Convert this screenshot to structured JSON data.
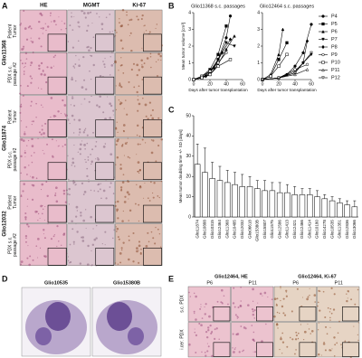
{
  "panel_a": {
    "letter": "A",
    "columns": [
      "HE",
      "MGMT",
      "Ki-67"
    ],
    "groups": [
      {
        "name": "Glio11368",
        "rows": [
          [
            "Patient",
            "Tumor"
          ],
          [
            "PDX s.c.",
            "passage #2"
          ]
        ]
      },
      {
        "name": "Glio11874",
        "rows": [
          [
            "Patient",
            "Tumor"
          ],
          [
            "PDX s.c.",
            "passage #2"
          ]
        ]
      },
      {
        "name": "Glio12032",
        "rows": [
          [
            "Patient",
            "Tumor"
          ],
          [
            "PDX s.c.",
            "passage #2"
          ]
        ]
      }
    ]
  },
  "chart_data": [
    {
      "type": "line",
      "letter": "B",
      "title": "Glio11368 s.c. passages",
      "y_label": "Mean tumor volume [cm³]",
      "x_label": "Days after tumor transplantation",
      "xlim": [
        0,
        60
      ],
      "xticks": [
        0,
        20,
        40,
        60
      ],
      "ylim": [
        0,
        4
      ],
      "yticks": [
        0,
        1,
        2,
        3,
        4
      ],
      "series": [
        {
          "color": "#000",
          "marker": "circle",
          "filled": true,
          "x": [
            0,
            10,
            20,
            30,
            40,
            45
          ],
          "values": [
            0,
            0.1,
            0.4,
            1.2,
            2.5,
            3.8
          ]
        },
        {
          "color": "#000",
          "marker": "square",
          "filled": true,
          "x": [
            0,
            10,
            20,
            30,
            40
          ],
          "values": [
            0,
            0.2,
            0.6,
            1.5,
            3.2
          ]
        },
        {
          "color": "#000",
          "marker": "triangle",
          "filled": true,
          "x": [
            0,
            10,
            20,
            30,
            40,
            50
          ],
          "values": [
            0,
            0.1,
            0.3,
            0.9,
            1.8,
            2.6
          ]
        },
        {
          "color": "#000",
          "marker": "triangle-down",
          "filled": true,
          "x": [
            0,
            10,
            20,
            30,
            40,
            50
          ],
          "values": [
            0,
            0.1,
            0.5,
            1.2,
            2.2,
            2.0
          ]
        },
        {
          "color": "#000",
          "marker": "diamond",
          "filled": true,
          "x": [
            0,
            15,
            25,
            35,
            45
          ],
          "values": [
            0,
            0.2,
            0.7,
            1.6,
            2.4
          ]
        },
        {
          "color": "#000",
          "marker": "circle",
          "filled": false,
          "x": [
            0,
            10,
            20,
            30,
            40
          ],
          "values": [
            0,
            0.2,
            0.5,
            1.0,
            1.6
          ]
        },
        {
          "color": "#000",
          "marker": "square",
          "filled": false,
          "x": [
            0,
            10,
            20,
            30,
            45
          ],
          "values": [
            0,
            0.1,
            0.3,
            0.8,
            1.2
          ]
        }
      ]
    },
    {
      "type": "line",
      "title": "Glio12464 s.c. passages",
      "x_label": "Days after tumor transplantation",
      "xlim": [
        0,
        60
      ],
      "xticks": [
        0,
        20,
        40,
        60
      ],
      "ylim": [
        0,
        4
      ],
      "yticks": [
        0,
        1,
        2,
        3,
        4
      ],
      "series": [
        {
          "name": "P4",
          "color": "#000",
          "marker": "circle",
          "filled": true,
          "x": [
            0,
            20,
            30,
            40,
            50,
            60
          ],
          "values": [
            0,
            0.1,
            0.3,
            0.8,
            1.6,
            3.3
          ]
        },
        {
          "name": "P5",
          "color": "#000",
          "marker": "square",
          "filled": true,
          "x": [
            0,
            10,
            20,
            30
          ],
          "values": [
            0,
            0.2,
            1.2,
            2.2
          ]
        },
        {
          "name": "P6",
          "color": "#000",
          "marker": "triangle",
          "filled": true,
          "x": [
            0,
            10,
            20,
            25
          ],
          "values": [
            0,
            0.3,
            1.5,
            3.0
          ]
        },
        {
          "name": "P7",
          "color": "#000",
          "marker": "triangle-down",
          "filled": true,
          "x": [
            0,
            20,
            40,
            50,
            60
          ],
          "values": [
            0,
            0.1,
            0.5,
            1.0,
            1.5
          ]
        },
        {
          "name": "P8",
          "color": "#000",
          "marker": "diamond",
          "filled": true,
          "x": [
            0,
            20,
            40,
            50,
            55
          ],
          "values": [
            0,
            0.1,
            0.4,
            1.0,
            2.3
          ]
        },
        {
          "name": "P9",
          "color": "#000",
          "marker": "circle",
          "filled": false,
          "x": [
            0,
            20,
            40,
            55
          ],
          "values": [
            0,
            0.1,
            0.6,
            0.9
          ]
        },
        {
          "name": "P10",
          "color": "#000",
          "marker": "square",
          "filled": false,
          "x": [
            0,
            10,
            20,
            30
          ],
          "values": [
            0,
            0.2,
            0.8,
            1.5
          ]
        },
        {
          "name": "P11",
          "color": "#000",
          "marker": "triangle",
          "filled": false,
          "x": [
            0,
            20,
            40,
            55
          ],
          "values": [
            0,
            0.1,
            0.3,
            0.6
          ]
        },
        {
          "name": "P12",
          "color": "#000",
          "marker": "triangle-down",
          "filled": false,
          "x": [
            0,
            20,
            40,
            60
          ],
          "values": [
            0,
            0.1,
            0.4,
            1.6
          ]
        }
      ]
    },
    {
      "type": "bar",
      "letter": "C",
      "y_label": "Mean tumor doubling time +/- SD [days]",
      "categories": [
        "Glio11874",
        "Glio10888",
        "Glio10315",
        "Glio12464",
        "Glio11368",
        "Glio10485",
        "Glio12032",
        "Glio06618",
        "Glio15380B",
        "Glio15807",
        "Glio11575",
        "Glio12586",
        "Glio11413",
        "Glio12421",
        "Glio12466",
        "Glio11414",
        "Glio10180",
        "Glio14278",
        "Glio10535",
        "Glio11351",
        "Glio12836",
        "Glio13066"
      ],
      "values": [
        26,
        22,
        19,
        18,
        17,
        16,
        15,
        15,
        14,
        13,
        13,
        12,
        12,
        11,
        11,
        11,
        10,
        9,
        8,
        7,
        6,
        5
      ],
      "errors": [
        10,
        12,
        8,
        7,
        6,
        6,
        6,
        5,
        4,
        5,
        4,
        5,
        4,
        4,
        3,
        3,
        3,
        2,
        2,
        2,
        2,
        3
      ],
      "color": "#ffffff",
      "edge_color": "#000000",
      "ylim": [
        0,
        50
      ],
      "yticks": [
        0,
        10,
        20,
        30,
        40,
        50
      ]
    }
  ],
  "panel_d": {
    "letter": "D",
    "labels": [
      "Glio10535",
      "Glio15380B"
    ]
  },
  "panel_e": {
    "letter": "E",
    "columns": [
      {
        "title": "Glio12464, HE",
        "passages": [
          "P6",
          "P11"
        ]
      },
      {
        "title": "Glio12464, Ki-67",
        "passages": [
          "P6",
          "P11"
        ]
      }
    ],
    "rows": [
      "s.c. PDX",
      "i.cer. PDX"
    ]
  }
}
